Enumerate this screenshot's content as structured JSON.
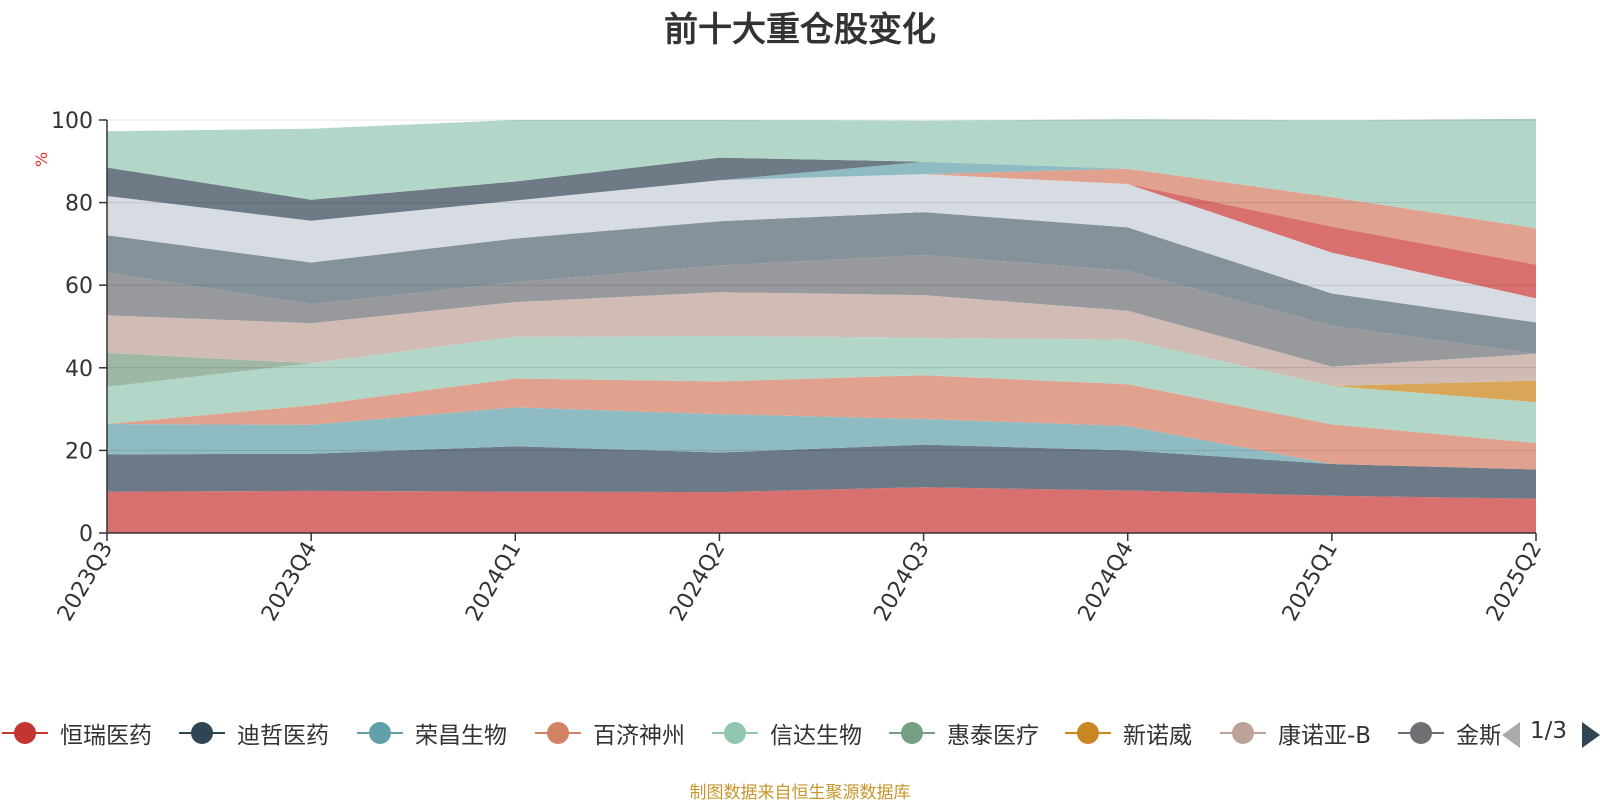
{
  "title": "前十大重仓股变化",
  "y_unit": "%",
  "source": "制图数据来自恒生聚源数据库",
  "pager": {
    "text": "1/3"
  },
  "legend_items": [
    {
      "label": "恒瑞医药",
      "color": "#c23531"
    },
    {
      "label": "迪哲医药",
      "color": "#2f4554"
    },
    {
      "label": "荣昌生物",
      "color": "#61a0a8"
    },
    {
      "label": "百济神州",
      "color": "#d48265"
    },
    {
      "label": "信达生物",
      "color": "#91c7ae"
    },
    {
      "label": "惠泰医疗",
      "color": "#749f83"
    },
    {
      "label": "新诺威",
      "color": "#ca8622"
    },
    {
      "label": "康诺亚-B",
      "color": "#bda29a"
    },
    {
      "label": "金斯瑞生物科技",
      "color": "#6e7074"
    }
  ],
  "chart_data": {
    "type": "area",
    "stacked": true,
    "title": "前十大重仓股变化",
    "ylabel": "%",
    "ylim": [
      0,
      100
    ],
    "yticks": [
      0,
      20,
      40,
      60,
      80,
      100
    ],
    "grid": true,
    "categories": [
      "2023Q3",
      "2023Q4",
      "2024Q1",
      "2024Q2",
      "2024Q3",
      "2024Q4",
      "2025Q1",
      "2025Q2"
    ],
    "series": [
      {
        "name": "恒瑞医药",
        "color": "#d7706e",
        "values": [
          10.0,
          10.2,
          10.0,
          9.9,
          11.1,
          10.3,
          9.0,
          8.3
        ]
      },
      {
        "name": "迪哲医药",
        "color": "#6b7a86",
        "values": [
          9.0,
          9.0,
          11.0,
          9.6,
          10.3,
          9.7,
          7.7,
          7.1
        ]
      },
      {
        "name": "荣昌生物",
        "color": "#8fbcc2",
        "values": [
          7.4,
          7.0,
          9.4,
          9.3,
          6.2,
          5.9,
          0,
          0
        ]
      },
      {
        "name": "百济神州",
        "color": "#e0a28f",
        "values": [
          0,
          4.7,
          7.0,
          7.9,
          10.6,
          10.1,
          9.6,
          6.4
        ]
      },
      {
        "name": "信达生物",
        "color": "#b2d7c8",
        "values": [
          9.0,
          10.2,
          10.1,
          11.0,
          9.1,
          10.8,
          9.3,
          9.9
        ]
      },
      {
        "name": "惠泰医疗",
        "color": "#9fb8a6",
        "values": [
          8.2,
          0,
          0,
          0,
          0,
          0,
          0,
          0
        ]
      },
      {
        "name": "新诺威",
        "color": "#d8a656",
        "values": [
          0,
          0,
          0,
          0,
          0,
          0,
          0,
          5.2
        ]
      },
      {
        "name": "康诺亚-B",
        "color": "#d1bcb5",
        "values": [
          9.1,
          9.7,
          8.4,
          10.6,
          10.3,
          7.0,
          4.7,
          6.5
        ]
      },
      {
        "name": "金斯瑞生物科技",
        "color": "#98999d",
        "values": [
          10.4,
          4.6,
          4.8,
          6.5,
          9.7,
          9.7,
          9.9,
          0
        ]
      },
      {
        "name": "",
        "color": "#86929a",
        "values": [
          9.0,
          10.1,
          10.6,
          10.7,
          10.4,
          10.5,
          7.8,
          7.6
        ]
      },
      {
        "name": "",
        "color": "#d7dbe2",
        "values": [
          9.5,
          10.1,
          9.2,
          9.9,
          9.2,
          10.5,
          9.9,
          5.8
        ]
      },
      {
        "name": "",
        "color": "#d7706e",
        "values": [
          0,
          0,
          0,
          0,
          0,
          0,
          6.3,
          8.2
        ]
      },
      {
        "name": "",
        "color": "#e0a28f",
        "values": [
          0,
          0,
          0,
          0,
          0,
          3.7,
          7.1,
          8.8
        ]
      },
      {
        "name": "",
        "color": "#8fbcc2",
        "values": [
          0,
          0,
          0,
          0,
          3.0,
          0,
          0,
          0
        ]
      },
      {
        "name": "",
        "color": "#6e7a86",
        "values": [
          6.9,
          5.1,
          4.6,
          5.5,
          0,
          0,
          0,
          0
        ]
      },
      {
        "name": "",
        "color": "#b2d7c8",
        "values": [
          8.8,
          17.2,
          14.9,
          9.1,
          9.9,
          12.0,
          18.6,
          26.5
        ]
      }
    ]
  }
}
